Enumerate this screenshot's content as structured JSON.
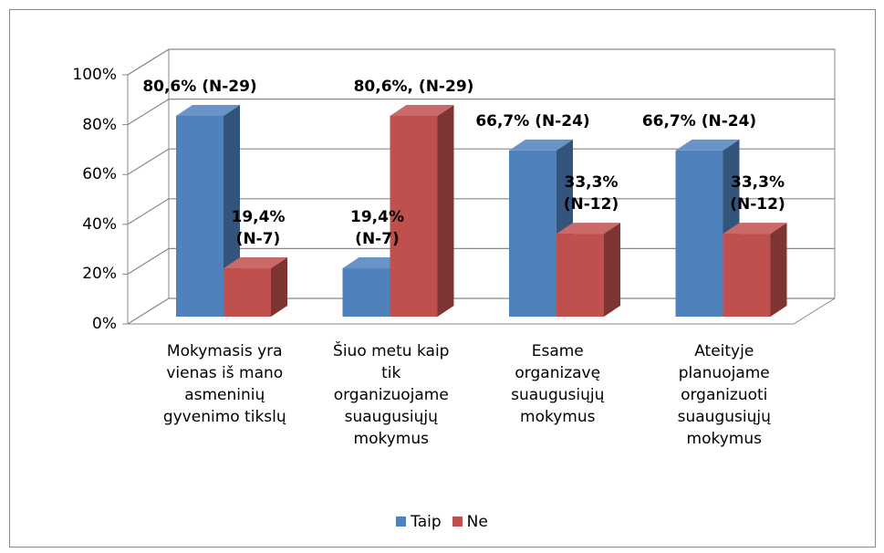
{
  "chart_data": {
    "type": "bar",
    "categories": [
      "Mokymasis yra vienas iš mano asmeninių gyvenimo tikslų",
      "Šiuo metu kaip tik organizuojame suaugusiųjų mokymus",
      "Esame organizavę suaugusiųjų mokymus",
      "Ateityje planuojame organizuoti suaugusiųjų mokymus"
    ],
    "series": [
      {
        "name": "Taip",
        "color": "#4f81bd",
        "values": [
          80.6,
          19.4,
          66.7,
          66.7
        ],
        "value_labels": [
          "80,6% (N-29)",
          "19,4% (N-7)",
          "66,7% (N-24)",
          "66,7% (N-24)"
        ]
      },
      {
        "name": "Ne",
        "color": "#c0504d",
        "values": [
          19.4,
          80.6,
          33.3,
          33.3
        ],
        "value_labels": [
          "19,4% (N-7)",
          "80,6%, (N-29)",
          "33,3% (N-12)",
          "33,3% (N-12)"
        ]
      }
    ],
    "ylim": [
      0,
      100
    ],
    "yticks": [
      {
        "value": 0,
        "label": "0%"
      },
      {
        "value": 20,
        "label": "20%"
      },
      {
        "value": 40,
        "label": "40%"
      },
      {
        "value": 60,
        "label": "60%"
      },
      {
        "value": 80,
        "label": "80%"
      },
      {
        "value": 100,
        "label": "100%"
      }
    ],
    "grid": true,
    "legend": "bottom"
  }
}
